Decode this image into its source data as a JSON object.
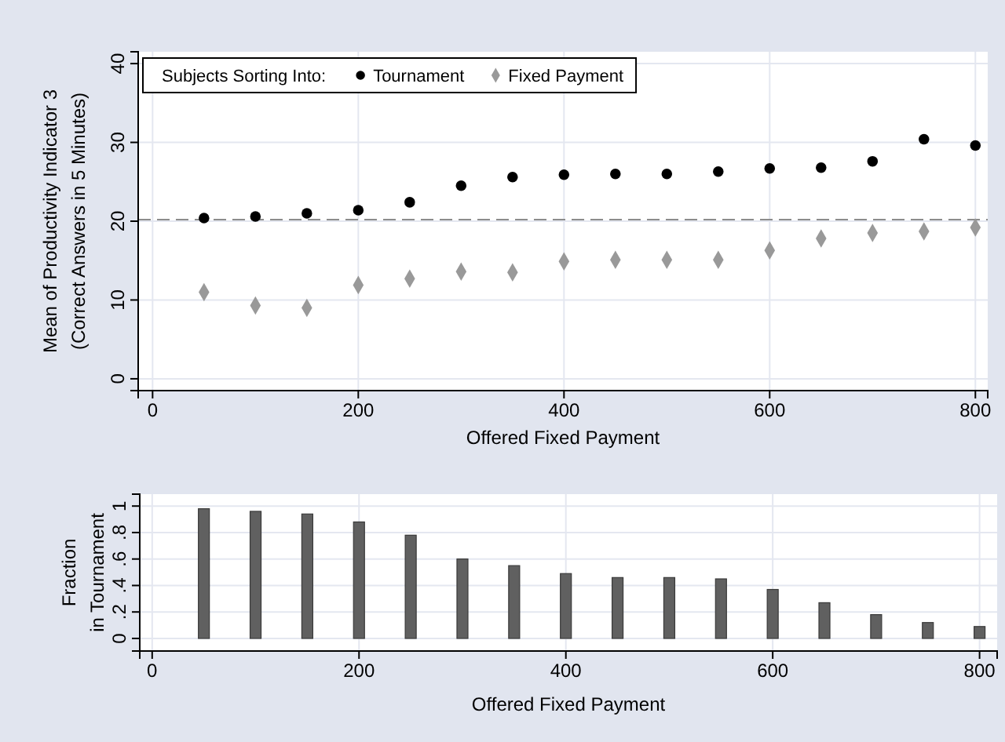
{
  "chart_data": [
    {
      "type": "scatter",
      "xlabel": "Offered Fixed Payment",
      "ylabel": "Mean of Productivity Indicator 3\n(Correct Answers in 5 Minutes)",
      "legend_title": "Subjects Sorting Into:",
      "legend": "top",
      "grid": true,
      "x": [
        50,
        100,
        150,
        200,
        250,
        300,
        350,
        400,
        450,
        500,
        550,
        600,
        650,
        700,
        750,
        800
      ],
      "series": [
        {
          "name": "Tournament",
          "color": "#000000",
          "marker": "circle",
          "values": [
            20.4,
            20.6,
            21.0,
            21.4,
            22.4,
            24.5,
            25.6,
            25.9,
            26.0,
            26.0,
            26.3,
            26.7,
            26.8,
            27.6,
            30.4,
            29.6
          ]
        },
        {
          "name": "Fixed Payment",
          "color": "#999999",
          "marker": "diamond",
          "values": [
            11.0,
            9.3,
            9.0,
            11.9,
            12.7,
            13.6,
            13.5,
            14.9,
            15.1,
            15.1,
            15.1,
            16.3,
            17.8,
            18.5,
            18.7,
            19.2
          ]
        }
      ],
      "xlim": [
        -14,
        812
      ],
      "xticks": [
        0,
        200,
        400,
        600,
        800
      ],
      "ylim": [
        -1.5,
        41.5
      ],
      "yticks": [
        0,
        10,
        20,
        30,
        40
      ],
      "ref_lines": [
        {
          "axis": "y",
          "value": 20.2,
          "color": "#8c8c8c",
          "line_style": "dashed"
        }
      ]
    },
    {
      "type": "bar",
      "xlabel": "Offered Fixed Payment",
      "ylabel": "Fraction\nin Tournament",
      "grid": true,
      "color": "#606060",
      "x": [
        50,
        100,
        150,
        200,
        250,
        300,
        350,
        400,
        450,
        500,
        550,
        600,
        650,
        700,
        750,
        800
      ],
      "values": [
        0.98,
        0.96,
        0.94,
        0.88,
        0.78,
        0.6,
        0.55,
        0.49,
        0.46,
        0.46,
        0.45,
        0.37,
        0.27,
        0.18,
        0.12,
        0.09
      ],
      "xlim": [
        -12,
        817
      ],
      "xticks": [
        0,
        200,
        400,
        600,
        800
      ],
      "ylim": [
        -0.095,
        1.09
      ],
      "yticks": [
        {
          "value": 0,
          "label": "0"
        },
        {
          "value": 0.2,
          "label": ".2"
        },
        {
          "value": 0.4,
          "label": ".4"
        },
        {
          "value": 0.6,
          "label": ".6"
        },
        {
          "value": 0.8,
          "label": ".8"
        },
        {
          "value": 1,
          "label": "1"
        }
      ]
    }
  ]
}
